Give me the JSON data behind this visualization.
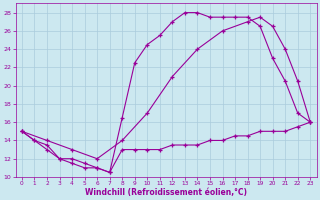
{
  "background_color": "#cce8f0",
  "grid_color": "#aaccdd",
  "line_color": "#990099",
  "marker": "+",
  "xlabel": "Windchill (Refroidissement éolien,°C)",
  "xlim": [
    -0.5,
    23.5
  ],
  "ylim": [
    10,
    29
  ],
  "xticks": [
    0,
    1,
    2,
    3,
    4,
    5,
    6,
    7,
    8,
    9,
    10,
    11,
    12,
    13,
    14,
    15,
    16,
    17,
    18,
    19,
    20,
    21,
    22,
    23
  ],
  "yticks": [
    10,
    12,
    14,
    16,
    18,
    20,
    22,
    24,
    26,
    28
  ],
  "series": [
    {
      "x": [
        0,
        1,
        2,
        3,
        4,
        5,
        6,
        7,
        8,
        9,
        10,
        11,
        12,
        13,
        14,
        15,
        16,
        17,
        18,
        19,
        20,
        21,
        22,
        23
      ],
      "y": [
        15,
        14,
        13,
        12,
        11.5,
        11,
        11,
        10.5,
        13,
        13,
        13,
        13,
        13.5,
        13.5,
        13.5,
        14,
        14,
        14.5,
        14.5,
        15,
        15,
        15,
        15.5,
        16
      ]
    },
    {
      "x": [
        0,
        1,
        2,
        3,
        4,
        5,
        6,
        7,
        8,
        9,
        10,
        11,
        12,
        13,
        14,
        15,
        16,
        17,
        18,
        19,
        20,
        21,
        22,
        23
      ],
      "y": [
        15,
        14,
        13.5,
        12,
        12,
        11.5,
        11,
        10.5,
        16.5,
        22.5,
        24.5,
        25.5,
        27,
        28,
        28,
        27.5,
        27.5,
        27.5,
        27.5,
        26.5,
        23,
        20.5,
        17,
        16
      ]
    },
    {
      "x": [
        0,
        2,
        4,
        6,
        8,
        10,
        12,
        14,
        16,
        18,
        19,
        20,
        21,
        22,
        23
      ],
      "y": [
        15,
        14,
        13,
        12,
        14,
        17,
        21,
        24,
        26,
        27,
        27.5,
        26.5,
        24,
        20.5,
        16
      ]
    }
  ]
}
